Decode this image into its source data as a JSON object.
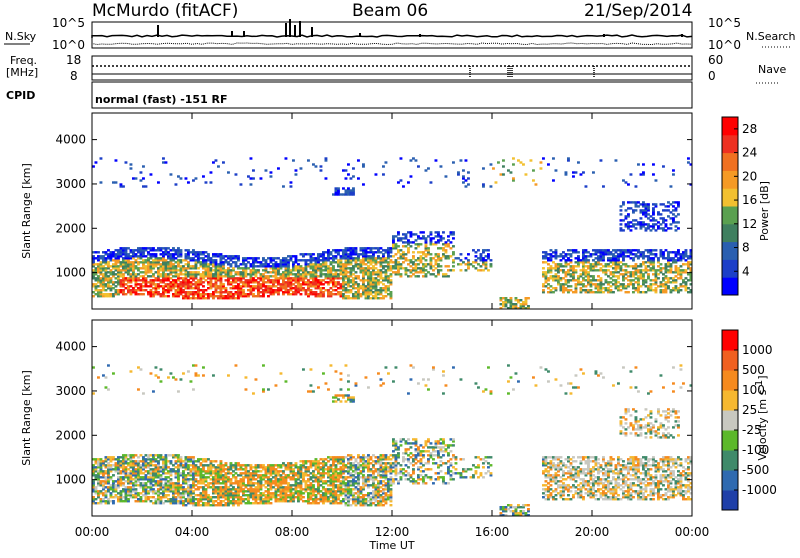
{
  "header": {
    "station": "McMurdo (fitACF)",
    "beam": "Beam 06",
    "date": "21/Sep/2014"
  },
  "top_panels": {
    "nsky_label": "N.Sky",
    "nsky_ticks": [
      "10^5",
      "10^0"
    ],
    "nsearch_label": "N.Search",
    "nsearch_ticks": [
      "10^5",
      "10^0"
    ],
    "freq_label_1": "Freq.",
    "freq_label_2": "[MHz]",
    "freq_ticks": [
      "18",
      "8"
    ],
    "nave_label": "Nave",
    "nave_ticks": [
      "60",
      "0"
    ],
    "cpid_label": "CPID",
    "cpid_text": "normal (fast) -151 RF"
  },
  "chart_data": [
    {
      "type": "heatmap",
      "name": "power",
      "ylabel": "Slant Range [km]",
      "xlabel": "Time UT",
      "xticks": [
        "00:00",
        "04:00",
        "08:00",
        "12:00",
        "16:00",
        "20:00",
        "00:00"
      ],
      "yticks": [
        "1000",
        "2000",
        "3000",
        "4000"
      ],
      "ylim": [
        180,
        4600
      ],
      "xlim_hours": [
        0,
        24
      ],
      "colorbar": {
        "label": "Power [dB]",
        "ticks": [
          "4",
          "8",
          "12",
          "16",
          "20",
          "24",
          "28"
        ],
        "range": [
          0,
          30
        ],
        "colors": [
          "#0000ff",
          "#1c3fc8",
          "#2a5fb0",
          "#3f7f5f",
          "#5aa050",
          "#f2c030",
          "#f59a25",
          "#f07020",
          "#ee3020",
          "#ff0000"
        ]
      }
    },
    {
      "type": "heatmap",
      "name": "velocity",
      "ylabel": "Slant Range [km]",
      "xlabel": "Time UT",
      "xticks": [
        "00:00",
        "04:00",
        "08:00",
        "12:00",
        "16:00",
        "20:00",
        "00:00"
      ],
      "yticks": [
        "1000",
        "2000",
        "3000",
        "4000"
      ],
      "ylim": [
        180,
        4600
      ],
      "xlim_hours": [
        0,
        24
      ],
      "colorbar": {
        "label_main": "Velocity [m s",
        "label_sup": "-1",
        "label_end": "]",
        "ticks": [
          "1000",
          "500",
          "100",
          "25",
          "-25",
          "-100",
          "-500",
          "-1000"
        ],
        "colors": [
          "#1f3fa8",
          "#2f6ab0",
          "#3f8a6a",
          "#5cb82a",
          "#c8c8c0",
          "#f5b830",
          "#f58a1e",
          "#f06020",
          "#ff0000"
        ]
      }
    }
  ]
}
